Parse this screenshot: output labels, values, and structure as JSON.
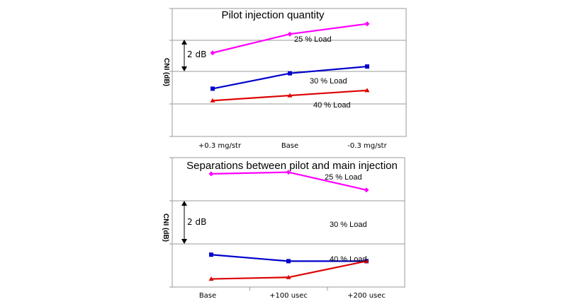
{
  "chart_data": [
    {
      "type": "line",
      "title": "Pilot injection quantity",
      "ylabel": "CNI (dB)",
      "categories": [
        "+0.3 mg/str",
        "Base",
        "-0.3 mg/str"
      ],
      "ylim": [
        -4,
        3.5
      ],
      "scale_bar": "2 dB",
      "series": [
        {
          "name": "25 % Load",
          "color": "#ff00ff",
          "marker": "diamond",
          "values": [
            0.9,
            2.0,
            2.6
          ]
        },
        {
          "name": "30 % Load",
          "color": "#0000cc",
          "marker": "square",
          "values": [
            -1.2,
            -0.3,
            0.1
          ]
        },
        {
          "name": "40 % Load",
          "color": "#dd0000",
          "marker": "triangle",
          "values": [
            -1.9,
            -1.6,
            -1.3
          ]
        }
      ]
    },
    {
      "type": "line",
      "title": "Separations between pilot and main injection",
      "ylabel": "CNI (dB)",
      "categories": [
        "Base",
        "+100 usec",
        "+200 usec"
      ],
      "ylim": [
        -4.5,
        3.5
      ],
      "scale_bar": "2 dB",
      "series": [
        {
          "name": "25 % Load",
          "color": "#ff00ff",
          "marker": "diamond",
          "values": [
            2.5,
            2.6,
            1.5
          ]
        },
        {
          "name": "30 % Load",
          "color": "#0000cc",
          "marker": "square",
          "values": [
            -2.5,
            -2.9,
            -2.9
          ]
        },
        {
          "name": "40 % Load",
          "color": "#dd0000",
          "marker": "triangle",
          "values": [
            -4.0,
            -3.9,
            -2.9
          ]
        }
      ]
    }
  ]
}
